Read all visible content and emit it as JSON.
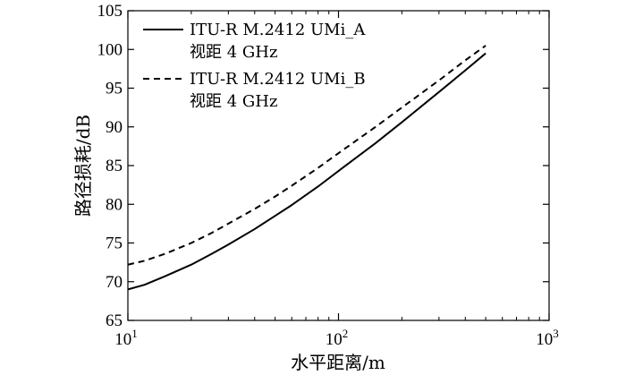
{
  "chart_data": {
    "type": "line",
    "xscale": "log",
    "xlim": [
      10,
      1000
    ],
    "ylim": [
      65,
      105
    ],
    "x_ticks": [
      {
        "base": "10",
        "exp": "1",
        "value": 10
      },
      {
        "base": "10",
        "exp": "2",
        "value": 100
      },
      {
        "base": "10",
        "exp": "3",
        "value": 1000
      }
    ],
    "y_ticks": [
      "65",
      "70",
      "75",
      "80",
      "85",
      "90",
      "95",
      "100",
      "105"
    ],
    "xlabel": "水平距离/m",
    "ylabel": "路径损耗/dB",
    "legend_position": "top-left",
    "grid": false,
    "series": [
      {
        "name_line1": "ITU-R M.2412 UMi_A",
        "name_line2": "视距 4 GHz",
        "style": "solid",
        "color": "#000000",
        "x": [
          10,
          12,
          15,
          20,
          25,
          30,
          40,
          50,
          60,
          80,
          100,
          150,
          200,
          300,
          400,
          500
        ],
        "y": [
          69.0,
          69.6,
          70.7,
          72.2,
          73.6,
          74.8,
          76.8,
          78.5,
          79.9,
          82.3,
          84.3,
          87.9,
          90.6,
          94.5,
          97.3,
          99.5
        ]
      },
      {
        "name_line1": "ITU-R M.2412 UMi_B",
        "name_line2": "视距 4 GHz",
        "style": "dashed",
        "color": "#000000",
        "x": [
          10,
          12,
          15,
          20,
          25,
          30,
          40,
          50,
          60,
          80,
          100,
          150,
          200,
          300,
          400,
          500
        ],
        "y": [
          72.2,
          72.7,
          73.6,
          75.0,
          76.3,
          77.5,
          79.4,
          81.0,
          82.4,
          84.7,
          86.6,
          90.0,
          92.5,
          96.0,
          98.6,
          100.5
        ]
      }
    ]
  }
}
